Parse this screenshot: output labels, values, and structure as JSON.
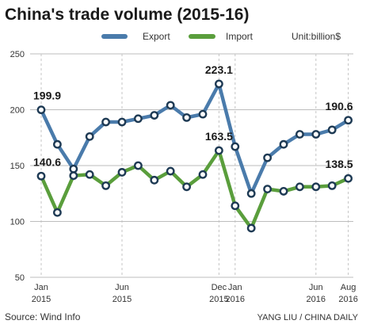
{
  "chart_data": {
    "type": "line",
    "title": "China's trade volume (2015-16)",
    "unit_label": "Unit:billion$",
    "source": "Source: Wind Info",
    "credit": "YANG LIU / CHINA DAILY",
    "ylim": [
      50,
      250
    ],
    "y_ticks": [
      50,
      100,
      150,
      200,
      250
    ],
    "grid": true,
    "legend_position": "top",
    "x": [
      "2015-01",
      "2015-02",
      "2015-03",
      "2015-04",
      "2015-05",
      "2015-06",
      "2015-07",
      "2015-08",
      "2015-09",
      "2015-10",
      "2015-11",
      "2015-12",
      "2016-01",
      "2016-02",
      "2016-03",
      "2016-04",
      "2016-05",
      "2016-06",
      "2016-07",
      "2016-08"
    ],
    "x_tick_labels": [
      {
        "month": "Jan",
        "year": "2015",
        "x": "2015-01"
      },
      {
        "month": "Jun",
        "year": "2015",
        "x": "2015-06"
      },
      {
        "month": "Dec",
        "year": "2015",
        "x": "2015-12"
      },
      {
        "month": "Jan",
        "year": "2016",
        "x": "2016-01"
      },
      {
        "month": "Jun",
        "year": "2016",
        "x": "2016-06"
      },
      {
        "month": "Aug",
        "year": "2016",
        "x": "2016-08"
      }
    ],
    "series": [
      {
        "name": "Export",
        "color": "#4a7bab",
        "values": [
          199.9,
          169,
          147,
          176,
          189,
          189,
          192,
          195,
          204,
          193,
          196,
          223.1,
          167,
          125,
          157,
          169,
          178,
          178,
          182,
          190.6
        ]
      },
      {
        "name": "Import",
        "color": "#5a9e3c",
        "values": [
          140.6,
          108,
          141,
          142,
          132,
          144,
          150,
          137,
          145,
          131,
          142,
          163.5,
          114,
          94,
          129,
          127,
          131,
          131,
          132,
          138.5
        ]
      }
    ],
    "annotations": [
      {
        "series": "Export",
        "x": "2015-01",
        "text": "199.9"
      },
      {
        "series": "Export",
        "x": "2015-12",
        "text": "223.1"
      },
      {
        "series": "Export",
        "x": "2016-08",
        "text": "190.6"
      },
      {
        "series": "Import",
        "x": "2015-01",
        "text": "140.6"
      },
      {
        "series": "Import",
        "x": "2015-12",
        "text": "163.5"
      },
      {
        "series": "Import",
        "x": "2016-08",
        "text": "138.5"
      }
    ]
  }
}
